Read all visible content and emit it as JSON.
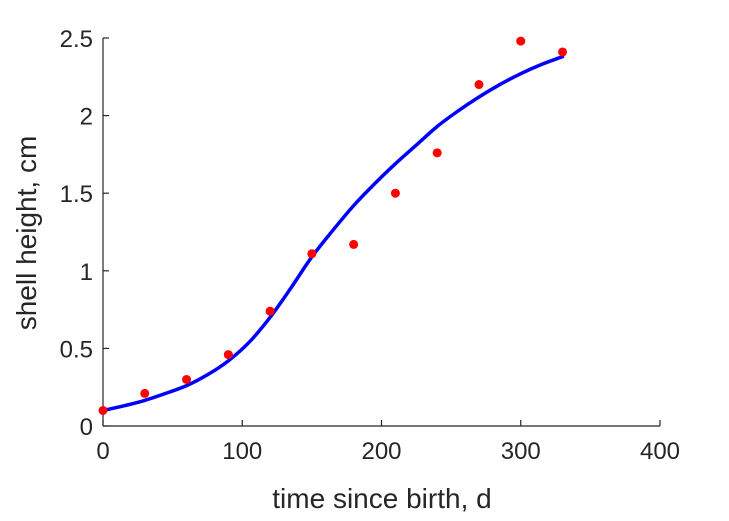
{
  "chart_data": {
    "type": "scatter",
    "title": "",
    "xlabel": "time since birth, d",
    "ylabel": "shell height, cm",
    "xlim": [
      0,
      400
    ],
    "ylim": [
      0,
      2.5
    ],
    "x_ticks": [
      0,
      100,
      200,
      300,
      400
    ],
    "y_ticks": [
      0,
      0.5,
      1,
      1.5,
      2,
      2.5
    ],
    "x_tick_labels": [
      "0",
      "100",
      "200",
      "300",
      "400"
    ],
    "y_tick_labels": [
      "0",
      "0.5",
      "1",
      "1.5",
      "2",
      "2.5"
    ],
    "grid": false,
    "legend": "none",
    "series": [
      {
        "type": "scatter",
        "color": "#ff0000",
        "x": [
          0,
          30,
          60,
          90,
          120,
          150,
          180,
          210,
          240,
          270,
          300,
          330
        ],
        "y": [
          0.1,
          0.21,
          0.3,
          0.46,
          0.74,
          1.11,
          1.17,
          1.5,
          1.76,
          2.2,
          2.48,
          2.41
        ]
      },
      {
        "type": "line",
        "color": "#0000ff",
        "x": [
          0,
          15,
          30,
          45,
          60,
          75,
          90,
          105,
          120,
          135,
          150,
          165,
          180,
          195,
          210,
          225,
          240,
          255,
          270,
          285,
          300,
          315,
          330
        ],
        "y": [
          0.1,
          0.13,
          0.165,
          0.21,
          0.26,
          0.33,
          0.42,
          0.54,
          0.7,
          0.89,
          1.09,
          1.26,
          1.42,
          1.56,
          1.69,
          1.81,
          1.93,
          2.03,
          2.12,
          2.2,
          2.27,
          2.33,
          2.38
        ]
      }
    ]
  }
}
